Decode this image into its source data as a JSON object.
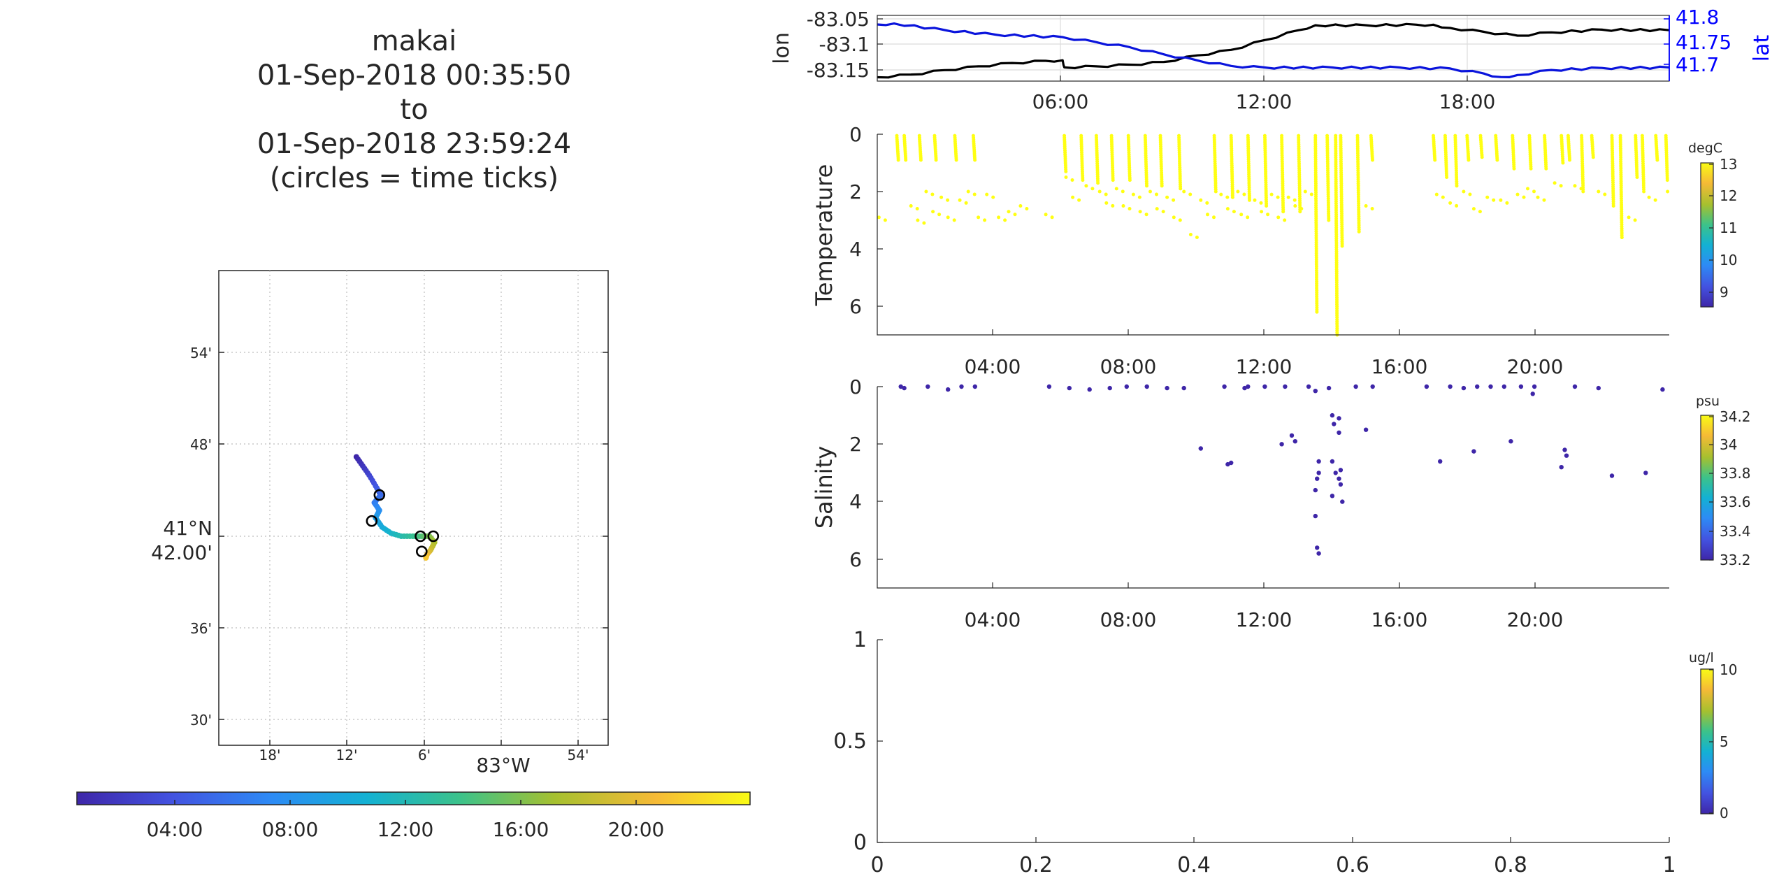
{
  "title_lines": [
    "makai",
    "01-Sep-2018 00:35:50",
    "to",
    "01-Sep-2018 23:59:24",
    "(circles = time ticks)"
  ],
  "colors": {
    "blue_axis": "#0000ff",
    "black_line": "#000000",
    "blue_line": "#0a14dc",
    "grid": "#d9d9d9",
    "yellow_marker": "#ffff12",
    "salinity_marker": "#3e26a8",
    "colormap": [
      "#3e26a8",
      "#4352e0",
      "#2d8bf5",
      "#13b1d3",
      "#3cc28a",
      "#a6c02f",
      "#f6ba36",
      "#f9fb15"
    ]
  },
  "map": {
    "lat_ticks": [
      "54'",
      "48'",
      "42.00'",
      "36'",
      "30'"
    ],
    "lat_degree_label": "41°N",
    "lon_ticks": [
      "18'",
      "12'",
      "6'",
      "54'"
    ],
    "lon_degree_label": "83°W",
    "colorbar_ticks": [
      "04:00",
      "08:00",
      "12:00",
      "16:00",
      "20:00"
    ]
  },
  "chart_data": [
    {
      "type": "line",
      "title": "",
      "x_ticks": [
        "06:00",
        "12:00",
        "18:00"
      ],
      "xlim_hours": [
        0.5,
        24
      ],
      "ylabel": "lon",
      "ylim": [
        -83.165,
        -83.045
      ],
      "y_ticks": [
        "-83.05",
        "-83.1",
        "-83.15"
      ],
      "y2label": "lat",
      "y2lim": [
        41.685,
        41.815
      ],
      "y2_ticks": [
        "41.8",
        "41.75",
        "41.7"
      ],
      "series": [
        {
          "name": "lon",
          "axis": "left",
          "x": [
            0.5,
            1.5,
            2.5,
            3.5,
            4.5,
            5.5,
            6.0,
            6.05,
            7.0,
            8.0,
            9.0,
            10.0,
            11.0,
            12.0,
            13.0,
            13.5,
            15.0,
            16.5,
            17.0,
            17.5,
            18.5,
            19.5,
            20.5,
            22.0,
            24.0
          ],
          "y": [
            -83.158,
            -83.153,
            -83.145,
            -83.138,
            -83.132,
            -83.128,
            -83.127,
            -83.14,
            -83.138,
            -83.135,
            -83.13,
            -83.118,
            -83.108,
            -83.09,
            -83.072,
            -83.063,
            -83.063,
            -83.062,
            -83.062,
            -83.068,
            -83.075,
            -83.082,
            -83.076,
            -83.071,
            -83.072
          ]
        },
        {
          "name": "lat",
          "axis": "right",
          "x": [
            0.5,
            1.0,
            2.5,
            4.0,
            6.0,
            7.0,
            8.0,
            9.0,
            10.0,
            11.0,
            12.0,
            14.0,
            16.0,
            17.5,
            18.5,
            19.0,
            19.5,
            20.5,
            22.0,
            24.0
          ],
          "y": [
            41.797,
            41.799,
            41.786,
            41.777,
            41.772,
            41.762,
            41.752,
            41.738,
            41.726,
            41.715,
            41.712,
            41.712,
            41.712,
            41.71,
            41.7,
            41.693,
            41.697,
            41.707,
            41.711,
            41.712
          ]
        }
      ]
    },
    {
      "type": "scatter",
      "title": "",
      "ylabel": "Temperature",
      "x_ticks": [
        "04:00",
        "08:00",
        "12:00",
        "16:00",
        "20:00"
      ],
      "xlim_hours": [
        0.5,
        24
      ],
      "ylim": [
        0,
        7
      ],
      "y_ticks": [
        "0",
        "2",
        "4",
        "6"
      ],
      "y_reversed": true,
      "colorbar": {
        "unit": "degC",
        "ticks": [
          "13",
          "12",
          "11",
          "10",
          "9"
        ],
        "range": [
          8.5,
          13
        ]
      },
      "casts": [
        {
          "x": 1.08,
          "bottom": 0.9
        },
        {
          "x": 1.3,
          "bottom": 0.9
        },
        {
          "x": 1.75,
          "bottom": 0.9
        },
        {
          "x": 2.2,
          "bottom": 0.9
        },
        {
          "x": 2.8,
          "bottom": 0.9
        },
        {
          "x": 3.35,
          "bottom": 0.9
        },
        {
          "x": 6.05,
          "bottom": 1.3
        },
        {
          "x": 6.55,
          "bottom": 1.6
        },
        {
          "x": 7.0,
          "bottom": 1.7
        },
        {
          "x": 7.45,
          "bottom": 1.6
        },
        {
          "x": 7.95,
          "bottom": 1.6
        },
        {
          "x": 8.45,
          "bottom": 1.8
        },
        {
          "x": 8.9,
          "bottom": 1.8
        },
        {
          "x": 9.45,
          "bottom": 1.9
        },
        {
          "x": 10.5,
          "bottom": 2.0
        },
        {
          "x": 11.0,
          "bottom": 2.2
        },
        {
          "x": 11.5,
          "bottom": 2.3
        },
        {
          "x": 12.0,
          "bottom": 2.5
        },
        {
          "x": 12.5,
          "bottom": 2.7
        },
        {
          "x": 13.0,
          "bottom": 2.7
        },
        {
          "x": 13.5,
          "bottom": 6.2
        },
        {
          "x": 13.85,
          "bottom": 3.0
        },
        {
          "x": 14.1,
          "bottom": 7.0
        },
        {
          "x": 14.25,
          "bottom": 3.9
        },
        {
          "x": 14.75,
          "bottom": 3.4
        },
        {
          "x": 15.15,
          "bottom": 0.9
        },
        {
          "x": 17.0,
          "bottom": 0.9
        },
        {
          "x": 17.35,
          "bottom": 1.5
        },
        {
          "x": 17.65,
          "bottom": 1.8
        },
        {
          "x": 18.0,
          "bottom": 0.9
        },
        {
          "x": 18.4,
          "bottom": 0.8
        },
        {
          "x": 18.85,
          "bottom": 0.9
        },
        {
          "x": 19.35,
          "bottom": 1.2
        },
        {
          "x": 19.85,
          "bottom": 1.2
        },
        {
          "x": 20.3,
          "bottom": 1.2
        },
        {
          "x": 20.8,
          "bottom": 1.0
        },
        {
          "x": 21.0,
          "bottom": 0.9
        },
        {
          "x": 21.4,
          "bottom": 2.0
        },
        {
          "x": 21.7,
          "bottom": 0.8
        },
        {
          "x": 22.3,
          "bottom": 2.5
        },
        {
          "x": 22.55,
          "bottom": 3.6
        },
        {
          "x": 23.0,
          "bottom": 1.5
        },
        {
          "x": 23.2,
          "bottom": 2.0
        },
        {
          "x": 23.6,
          "bottom": 0.9
        },
        {
          "x": 23.9,
          "bottom": 1.6
        }
      ],
      "extra_points": [
        [
          0.55,
          2.9
        ],
        [
          1.5,
          2.5
        ],
        [
          1.7,
          3.0
        ],
        [
          1.95,
          2.0
        ],
        [
          2.15,
          2.7
        ],
        [
          2.4,
          2.2
        ],
        [
          2.6,
          2.9
        ],
        [
          2.95,
          2.3
        ],
        [
          3.2,
          2.0
        ],
        [
          3.5,
          2.9
        ],
        [
          3.75,
          2.1
        ],
        [
          4.1,
          2.9
        ],
        [
          4.4,
          2.7
        ],
        [
          4.75,
          2.5
        ],
        [
          5.5,
          2.8
        ],
        [
          6.1,
          1.5
        ],
        [
          6.3,
          2.2
        ],
        [
          6.7,
          1.8
        ],
        [
          7.1,
          2.0
        ],
        [
          7.3,
          2.4
        ],
        [
          7.6,
          1.9
        ],
        [
          7.8,
          2.5
        ],
        [
          8.1,
          2.1
        ],
        [
          8.3,
          2.7
        ],
        [
          8.6,
          2.0
        ],
        [
          8.8,
          2.6
        ],
        [
          9.1,
          2.2
        ],
        [
          9.3,
          2.9
        ],
        [
          9.6,
          2.0
        ],
        [
          9.8,
          3.5
        ],
        [
          10.1,
          2.3
        ],
        [
          10.3,
          2.8
        ],
        [
          10.7,
          2.1
        ],
        [
          10.9,
          2.6
        ],
        [
          11.2,
          2.0
        ],
        [
          11.3,
          2.8
        ],
        [
          11.7,
          2.3
        ],
        [
          11.9,
          2.7
        ],
        [
          12.2,
          2.1
        ],
        [
          12.4,
          2.9
        ],
        [
          12.7,
          2.2
        ],
        [
          12.9,
          2.5
        ],
        [
          13.2,
          2.0
        ],
        [
          15.0,
          2.5
        ],
        [
          17.1,
          2.1
        ],
        [
          17.5,
          2.4
        ],
        [
          17.9,
          2.0
        ],
        [
          18.2,
          2.6
        ],
        [
          18.6,
          2.2
        ],
        [
          19.0,
          2.3
        ],
        [
          19.5,
          2.1
        ],
        [
          19.8,
          1.9
        ],
        [
          20.1,
          2.2
        ],
        [
          20.6,
          1.7
        ],
        [
          21.2,
          1.8
        ],
        [
          21.9,
          2.0
        ],
        [
          22.8,
          2.9
        ],
        [
          23.4,
          2.2
        ],
        [
          23.95,
          2.0
        ]
      ]
    },
    {
      "type": "scatter",
      "title": "",
      "ylabel": "Salinity",
      "x_ticks": [
        "04:00",
        "08:00",
        "12:00",
        "16:00",
        "20:00"
      ],
      "xlim_hours": [
        0.5,
        24
      ],
      "ylim": [
        0,
        7
      ],
      "y_ticks": [
        "0",
        "2",
        "4",
        "6"
      ],
      "y_reversed": true,
      "colorbar": {
        "unit": "psu",
        "ticks": [
          "34.2",
          "34",
          "33.8",
          "33.6",
          "33.4",
          "33.2"
        ],
        "range": [
          33.2,
          34.25
        ]
      },
      "points": [
        [
          1.2,
          0.0
        ],
        [
          1.3,
          0.05
        ],
        [
          2.0,
          0.0
        ],
        [
          2.6,
          0.1
        ],
        [
          3.0,
          0.0
        ],
        [
          3.4,
          0.0
        ],
        [
          5.6,
          0.0
        ],
        [
          6.2,
          0.05
        ],
        [
          6.8,
          0.1
        ],
        [
          7.4,
          0.05
        ],
        [
          7.9,
          0.0
        ],
        [
          8.5,
          0.0
        ],
        [
          9.1,
          0.05
        ],
        [
          9.6,
          0.05
        ],
        [
          10.1,
          2.15
        ],
        [
          10.8,
          0.0
        ],
        [
          10.9,
          2.7
        ],
        [
          11.0,
          2.65
        ],
        [
          11.4,
          0.05
        ],
        [
          11.5,
          0.0
        ],
        [
          12.0,
          0.0
        ],
        [
          12.6,
          0.0
        ],
        [
          12.5,
          2.0
        ],
        [
          12.8,
          1.7
        ],
        [
          12.9,
          1.9
        ],
        [
          13.3,
          0.0
        ],
        [
          13.5,
          0.15
        ],
        [
          13.6,
          2.6
        ],
        [
          13.55,
          3.2
        ],
        [
          13.5,
          3.6
        ],
        [
          13.6,
          3.0
        ],
        [
          13.5,
          4.5
        ],
        [
          13.55,
          5.6
        ],
        [
          13.6,
          5.8
        ],
        [
          13.9,
          0.05
        ],
        [
          14.0,
          1.0
        ],
        [
          14.05,
          1.3
        ],
        [
          14.0,
          2.6
        ],
        [
          14.1,
          3.0
        ],
        [
          14.0,
          3.8
        ],
        [
          14.2,
          1.1
        ],
        [
          14.2,
          1.6
        ],
        [
          14.25,
          2.9
        ],
        [
          14.2,
          3.2
        ],
        [
          14.25,
          3.4
        ],
        [
          14.3,
          4.0
        ],
        [
          14.7,
          0.0
        ],
        [
          15.0,
          1.5
        ],
        [
          15.2,
          0.0
        ],
        [
          16.8,
          0.0
        ],
        [
          17.2,
          2.6
        ],
        [
          17.5,
          0.0
        ],
        [
          17.9,
          0.05
        ],
        [
          18.2,
          2.25
        ],
        [
          18.3,
          0.0
        ],
        [
          18.7,
          0.0
        ],
        [
          19.1,
          0.0
        ],
        [
          19.3,
          1.9
        ],
        [
          19.6,
          0.0
        ],
        [
          19.95,
          0.25
        ],
        [
          20.0,
          0.0
        ],
        [
          20.8,
          2.8
        ],
        [
          20.9,
          2.2
        ],
        [
          20.95,
          2.4
        ],
        [
          21.2,
          0.0
        ],
        [
          21.9,
          0.05
        ],
        [
          22.3,
          3.1
        ],
        [
          23.3,
          3.0
        ],
        [
          23.8,
          0.1
        ]
      ]
    },
    {
      "type": "scatter",
      "title": "",
      "ylabel": "",
      "x_ticks": [
        "0",
        "0.2",
        "0.4",
        "0.6",
        "0.8",
        "1"
      ],
      "y_ticks": [
        "1",
        "0.5",
        "0"
      ],
      "xlim": [
        0,
        1
      ],
      "ylim": [
        0,
        1
      ],
      "colorbar": {
        "unit": "ug/l",
        "ticks": [
          "10",
          "5",
          "0"
        ],
        "range": [
          0,
          10
        ]
      },
      "points": []
    }
  ]
}
